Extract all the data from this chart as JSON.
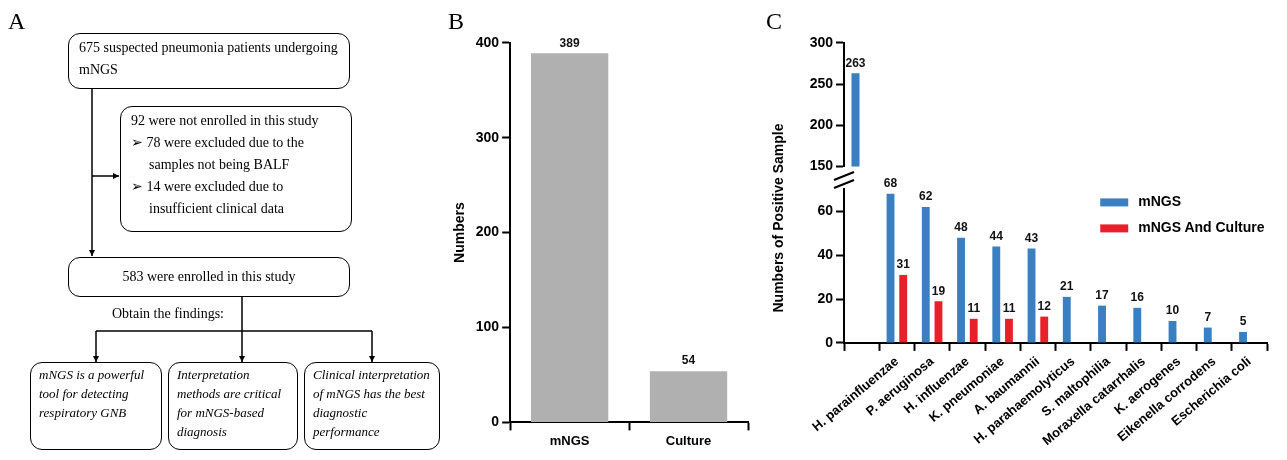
{
  "chart_data": [
    {
      "type": "other",
      "title": "A",
      "annotations": [
        "675 suspected pneumonia patients undergoing mNGS",
        "92 were not enrolled in this study",
        "➢ 78 were excluded due to the samples not being BALF",
        "➢ 14 were excluded due to insufficient clinical data",
        "583 were enrolled in this study",
        "Obtain the findings:",
        "mNGS is a powerful tool for detecting respiratory GNB",
        "Interpretation methods are critical for mNGS-based diagnosis",
        "Clinical interpretation of mNGS has the best diagnostic performance"
      ]
    },
    {
      "type": "bar",
      "title": "B",
      "ylabel": "Numbers",
      "categories": [
        "mNGS",
        "Culture"
      ],
      "values": [
        389,
        54
      ],
      "color": "#b0b0b0",
      "ylim": [
        0,
        400
      ],
      "yticks": [
        0,
        100,
        200,
        300,
        400
      ],
      "grid": false,
      "data_labels": true
    },
    {
      "type": "bar",
      "title": "C",
      "categories": [
        null
      ],
      "color": "#3a7fc1",
      "values": [
        263
      ],
      "ylim": [
        150,
        300
      ],
      "yticks": [
        150,
        200,
        250,
        300
      ],
      "grid": false,
      "data_labels": true,
      "tick_labels": "y"
    },
    {
      "type": "bar",
      "ylabel": "Numbers of Positive Sample",
      "categories": [
        null,
        "H. parainfluenzae",
        "P. aeruginosa",
        "H. influenzae",
        "K. pneumoniae",
        "A. baumannii",
        "H. parahaemolyticus",
        "S. maltophilia",
        "Moraxella catarrhalis",
        "K. aerogenes",
        "Eikenella corrodens",
        "Escherichia coli"
      ],
      "series": [
        {
          "name": "mNGS",
          "color": "#3a7fc1",
          "values": [
            null,
            68,
            62,
            48,
            44,
            43,
            21,
            17,
            16,
            10,
            7,
            5
          ]
        },
        {
          "name": "mNGS And Culture",
          "color": "#e8202a",
          "values": [
            null,
            31,
            19,
            11,
            11,
            12,
            null,
            null,
            null,
            null,
            null,
            null
          ]
        }
      ],
      "ylim": [
        0,
        70
      ],
      "yticks": [
        0,
        20,
        40,
        60
      ],
      "grid": false,
      "legend": "top right",
      "data_labels": true
    }
  ]
}
